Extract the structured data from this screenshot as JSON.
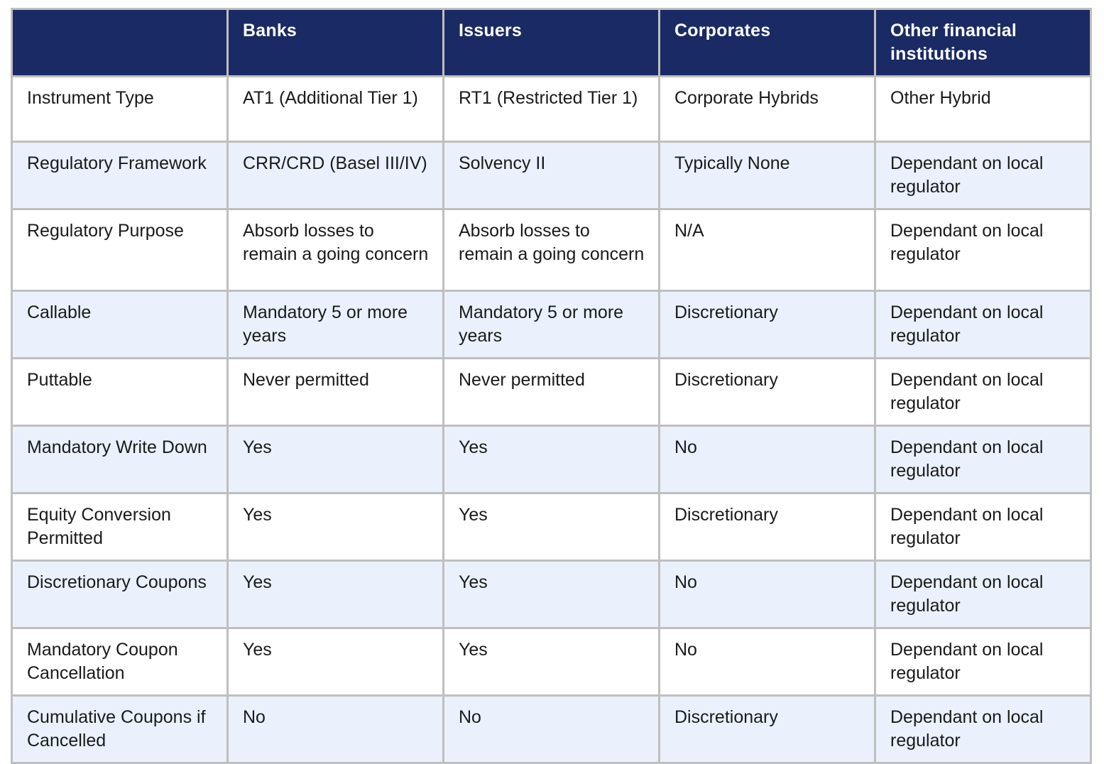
{
  "colors": {
    "header_bg": "#1a2a64",
    "header_text": "#ffffff",
    "row_bg": "#ffffff",
    "row_alt_bg": "#eaf1fc",
    "border": "#bfbfbf",
    "body_text": "#1a1a1a"
  },
  "table": {
    "columns": [
      "",
      "Banks",
      "Issuers",
      "Corporates",
      "Other financial institutions"
    ],
    "rows": [
      {
        "label": "Instrument Type",
        "cells": [
          "AT1 (Additional Tier 1)",
          "RT1 (Restricted Tier 1)",
          "Corporate Hybrids",
          "Other Hybrid"
        ]
      },
      {
        "label": "Regulatory Framework",
        "cells": [
          "CRR/CRD (Basel III/IV)",
          "Solvency II",
          "Typically None",
          "Dependant on local regulator"
        ]
      },
      {
        "label": "Regulatory Purpose",
        "cells": [
          "Absorb losses to remain a going concern",
          "Absorb losses to remain a going concern",
          "N/A",
          "Dependant on local regulator"
        ]
      },
      {
        "label": "Callable",
        "cells": [
          "Mandatory 5 or more years",
          "Mandatory 5 or more years",
          "Discretionary",
          "Dependant on local regulator"
        ]
      },
      {
        "label": "Puttable",
        "cells": [
          "Never permitted",
          "Never permitted",
          "Discretionary",
          "Dependant on local regulator"
        ]
      },
      {
        "label": "Mandatory Write Down",
        "cells": [
          "Yes",
          "Yes",
          "No",
          "Dependant on local regulator"
        ]
      },
      {
        "label": "Equity Conversion Permitted",
        "cells": [
          "Yes",
          "Yes",
          "Discretionary",
          "Dependant on local regulator"
        ]
      },
      {
        "label": "Discretionary Coupons",
        "cells": [
          "Yes",
          "Yes",
          "No",
          "Dependant on local regulator"
        ]
      },
      {
        "label": "Mandatory Coupon Cancellation",
        "cells": [
          "Yes",
          "Yes",
          "No",
          "Dependant on local regulator"
        ]
      },
      {
        "label": "Cumulative Coupons if Cancelled",
        "cells": [
          "No",
          "No",
          "Discretionary",
          "Dependant on local regulator"
        ]
      }
    ]
  }
}
